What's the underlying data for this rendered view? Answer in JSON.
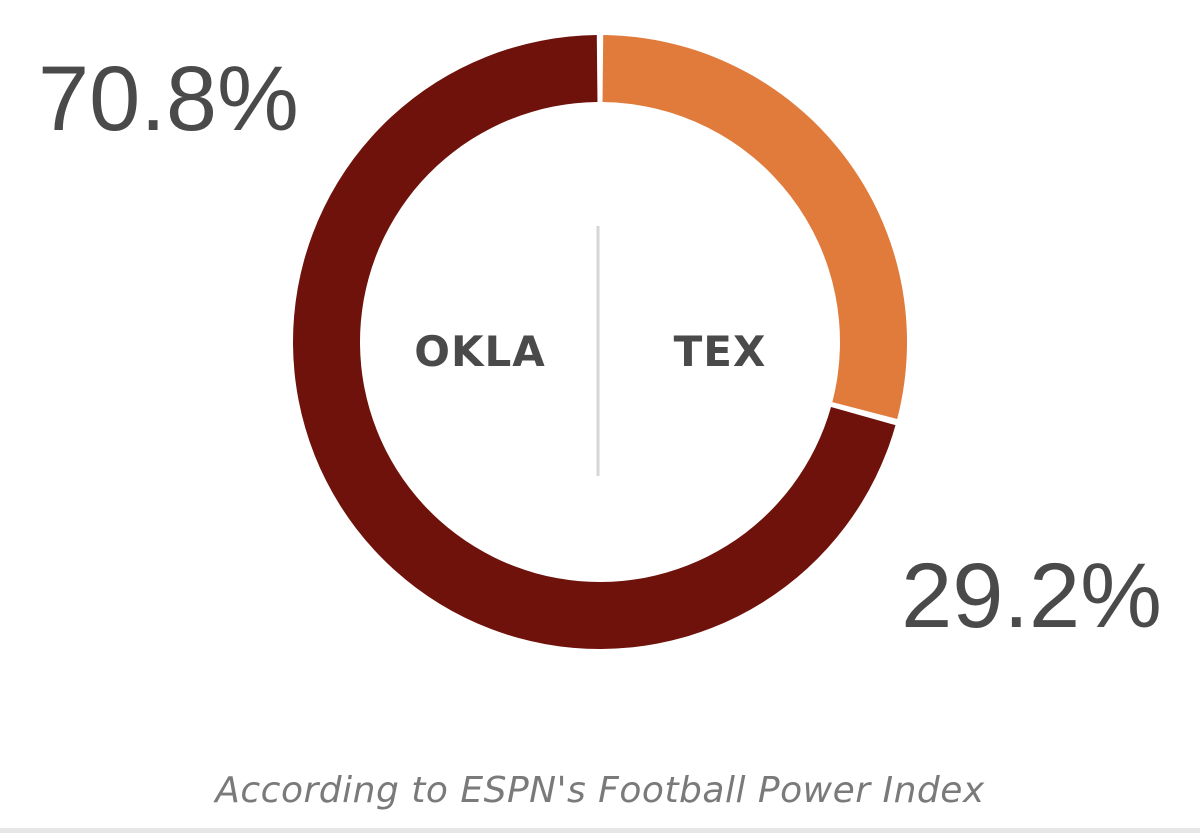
{
  "chart_data": {
    "type": "pie",
    "variant": "donut",
    "title": "",
    "slices": [
      {
        "label": "OKLA",
        "value": 70.8,
        "display": "70.8%",
        "color": "#6e120b"
      },
      {
        "label": "TEX",
        "value": 29.2,
        "display": "29.2%",
        "color": "#e07b3c"
      }
    ],
    "center_divider": true,
    "note": "According to ESPN's Football Power Index"
  }
}
